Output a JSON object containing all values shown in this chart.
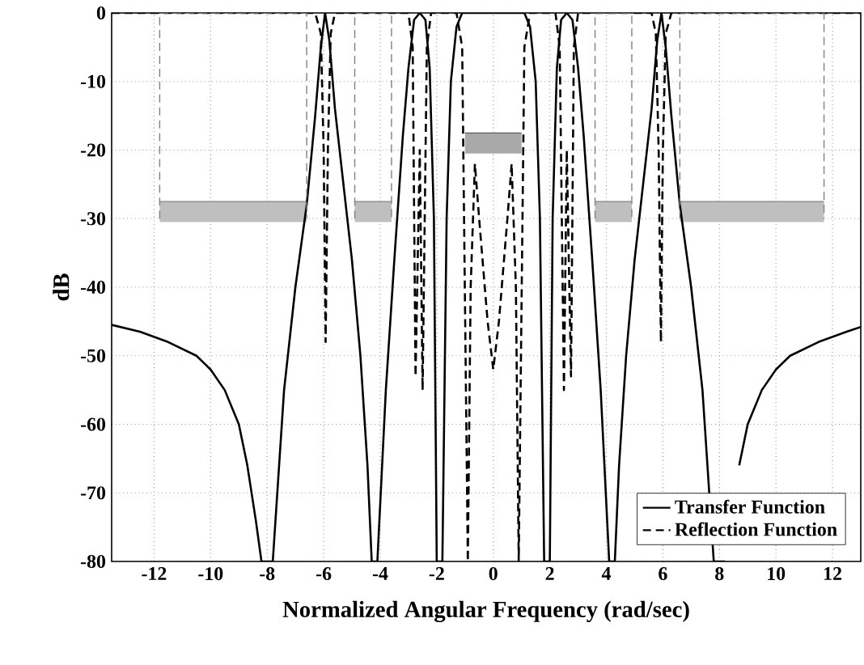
{
  "chart_data": {
    "type": "line",
    "xlabel": "Normalized Angular Frequency (rad/sec)",
    "ylabel": "dB",
    "xlim": [
      -13.5,
      13
    ],
    "ylim": [
      -80,
      0
    ],
    "xticks": [
      -12,
      -10,
      -8,
      -6,
      -4,
      -2,
      0,
      2,
      4,
      6,
      8,
      10,
      12
    ],
    "yticks": [
      0,
      -10,
      -20,
      -30,
      -40,
      -50,
      -60,
      -70,
      -80
    ],
    "grid": true,
    "legend": "bottom right",
    "marker": "none",
    "series": [
      {
        "color": "#707070",
        "x": [
          -11.8,
          -6.6
        ],
        "values": [
          -27.5,
          -27.5
        ],
        "lower": [
          -30.5,
          -30.5
        ],
        "upper": [
          -27.5,
          -27.5
        ]
      },
      {
        "color": "#707070",
        "x": [
          -4.9,
          -3.6
        ],
        "values": [
          -27.5,
          -27.5
        ],
        "lower": [
          -30.5,
          -30.5
        ],
        "upper": [
          -27.5,
          -27.5
        ]
      },
      {
        "color": "#707070",
        "x": [
          3.6,
          4.9
        ],
        "values": [
          -27.5,
          -27.5
        ],
        "lower": [
          -30.5,
          -30.5
        ],
        "upper": [
          -27.5,
          -27.5
        ]
      },
      {
        "color": "#707070",
        "x": [
          6.6,
          11.7
        ],
        "values": [
          -27.5,
          -27.5
        ],
        "lower": [
          -30.5,
          -30.5
        ],
        "upper": [
          -27.5,
          -27.5
        ]
      },
      {
        "color": "#404040",
        "x": [
          -1.0,
          1.0
        ],
        "values": [
          -17.5,
          -17.5
        ],
        "lower": [
          -20.5,
          -20.5
        ],
        "upper": [
          -17.5,
          -17.5
        ]
      },
      {
        "name": "Transfer Function",
        "line_style": "solid",
        "color": "#000000",
        "x": [
          -13.5,
          -12.5,
          -11.5,
          -10.5,
          -10,
          -9.5,
          -9,
          -8.7,
          -8.4,
          -8.2,
          -7.8,
          -7.4,
          -7.0,
          -6.6,
          -6.3,
          -6.1,
          -5.95,
          -5.8,
          -5.6,
          -5.3,
          -5.0,
          -4.7,
          -4.45,
          -4.3,
          -4.1,
          -3.8,
          -3.5,
          -3.2,
          -3.0,
          -2.8,
          -2.6,
          -2.4,
          -2.25,
          -2.1,
          -2.0,
          -1.8,
          -1.65,
          -1.5,
          -1.3,
          -1.1,
          0,
          1.1,
          1.3,
          1.5,
          1.65,
          1.8,
          2.0,
          2.1,
          2.25,
          2.4,
          2.6,
          2.8,
          3.0,
          3.2,
          3.5,
          3.8,
          4.1,
          4.3,
          4.45,
          4.7,
          5.0,
          5.3,
          5.6,
          5.8,
          5.95,
          6.1,
          6.3,
          6.6,
          7.0,
          7.4,
          7.8,
          8.2,
          8.4,
          8.7,
          9,
          9.5,
          10,
          10.5,
          11.5,
          12.5,
          13
        ],
        "values": [
          -45.5,
          -46.5,
          -48,
          -50,
          -52,
          -55,
          -60,
          -66,
          -74,
          -80,
          -80,
          -55,
          -40,
          -28,
          -15,
          -5,
          0,
          -4,
          -14,
          -25,
          -36,
          -50,
          -66,
          -80,
          -80,
          -55,
          -36,
          -18,
          -8,
          -1,
          0,
          -1,
          -8,
          -30,
          -80,
          -80,
          -30,
          -10,
          -2,
          0,
          0,
          0,
          -2,
          -10,
          -30,
          -80,
          -80,
          -30,
          -8,
          -1,
          0,
          -1,
          -8,
          -18,
          -36,
          -55,
          -80,
          -80,
          -66,
          -50,
          -36,
          -25,
          -14,
          -4,
          0,
          -5,
          -15,
          -28,
          -40,
          -55,
          -80,
          -80,
          null,
          -66,
          -60,
          -55,
          -52,
          -50,
          -48,
          -46.5,
          -45.8
        ]
      },
      {
        "name": "Reflection Function",
        "line_style": "dashed",
        "color": "#000000",
        "x": [
          -13.5,
          -6.3,
          -6.1,
          -6.0,
          -5.93,
          -5.85,
          -5.75,
          -5.6,
          -3.0,
          -2.85,
          -2.75,
          -2.6,
          -2.5,
          -2.35,
          -2.2,
          -1.3,
          -1.1,
          -0.9,
          -0.8,
          -0.65,
          -0.5,
          -0.2,
          0,
          0.2,
          0.5,
          0.65,
          0.8,
          0.9,
          1.1,
          1.3,
          2.2,
          2.35,
          2.5,
          2.6,
          2.75,
          2.85,
          3.0,
          5.6,
          5.75,
          5.85,
          5.93,
          6.0,
          6.1,
          6.3,
          13
        ],
        "values": [
          0,
          0,
          -3,
          -20,
          -48,
          -20,
          -3,
          0,
          0,
          -5,
          -53,
          -20,
          -55,
          -5,
          0,
          0,
          -5,
          -80,
          -40,
          -22,
          -30,
          -45,
          -52,
          -45,
          -30,
          -22,
          -40,
          -80,
          -5,
          0,
          0,
          -5,
          -55,
          -20,
          -53,
          -5,
          0,
          0,
          -3,
          -20,
          -48,
          -20,
          -3,
          0,
          0
        ]
      },
      {
        "line_style": "dashed",
        "color": "#808080",
        "x": [
          -11.8,
          -11.8,
          -6.6,
          -6.6
        ],
        "values": [
          -30,
          0,
          0,
          -30
        ]
      },
      {
        "line_style": "dashed",
        "color": "#808080",
        "x": [
          -4.9,
          -4.9,
          -3.6,
          -3.6
        ],
        "values": [
          -30,
          0,
          0,
          -30
        ]
      },
      {
        "line_style": "dashed",
        "color": "#808080",
        "x": [
          3.6,
          3.6,
          4.9,
          4.9
        ],
        "values": [
          -30,
          0,
          0,
          -30
        ]
      },
      {
        "line_style": "dashed",
        "color": "#808080",
        "x": [
          6.6,
          6.6,
          11.7,
          11.7
        ],
        "values": [
          -30,
          0,
          0,
          -30
        ]
      }
    ]
  }
}
